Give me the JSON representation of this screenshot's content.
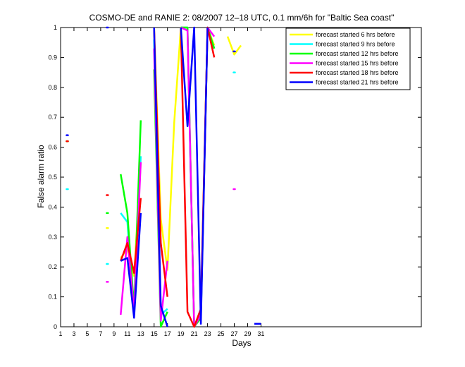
{
  "chart_data": {
    "type": "line",
    "title": "COSMO-DE and RANIE 2: 08/2007 12–18 UTC, 0.1 mm/6h for \"Baltic Sea coast\"",
    "xlabel": "Days",
    "ylabel": "False alarm ratio",
    "xlim": [
      1,
      55
    ],
    "ylim": [
      0,
      1
    ],
    "xticks": [
      1,
      3,
      5,
      7,
      9,
      11,
      13,
      15,
      17,
      19,
      21,
      23,
      25,
      27,
      29,
      31
    ],
    "yticks": [
      0,
      0.1,
      0.2,
      0.3,
      0.4,
      0.5,
      0.6,
      0.7,
      0.8,
      0.9,
      1
    ],
    "legend_position": "top-right",
    "series": [
      {
        "name": "forecast started 6 hrs before",
        "color": "#ffff00",
        "points": [
          [
            2,
            0.62
          ],
          [
            8,
            0.33
          ],
          [
            10,
            0.23
          ],
          [
            11,
            0.26
          ],
          [
            12,
            0.17
          ],
          [
            13,
            0.55
          ],
          [
            15,
            1.0
          ],
          [
            16,
            0.36
          ],
          [
            17,
            0.19
          ],
          [
            18,
            0.68
          ],
          [
            19,
            1.0
          ],
          [
            20,
            1.0
          ],
          [
            21,
            0.0
          ],
          [
            22,
            0.04
          ],
          [
            23,
            1.0
          ],
          [
            24,
            0.94
          ],
          [
            26,
            0.97
          ],
          [
            27,
            0.91
          ],
          [
            28,
            0.94
          ]
        ]
      },
      {
        "name": "forecast started 9 hrs before",
        "color": "#00ffff",
        "points": [
          [
            2,
            0.46
          ],
          [
            8,
            0.21
          ],
          [
            10,
            0.38
          ],
          [
            11,
            0.35
          ],
          [
            12,
            0.05
          ],
          [
            13,
            0.57
          ],
          [
            15,
            0.96
          ],
          [
            16,
            0.04
          ],
          [
            17,
            0.06
          ],
          [
            19,
            1.0
          ],
          [
            20,
            1.0
          ],
          [
            21,
            0.0
          ],
          [
            22,
            0.03
          ],
          [
            23,
            1.0
          ],
          [
            24,
            0.93
          ],
          [
            27,
            0.85
          ]
        ]
      },
      {
        "name": "forecast started 12 hrs before",
        "color": "#00ff00",
        "points": [
          [
            2,
            0.62
          ],
          [
            8,
            0.38
          ],
          [
            10,
            0.51
          ],
          [
            11,
            0.38
          ],
          [
            12,
            0.06
          ],
          [
            13,
            0.69
          ],
          [
            15,
            0.86
          ],
          [
            16,
            0.0
          ],
          [
            17,
            0.05
          ],
          [
            19,
            1.0
          ],
          [
            20,
            1.0
          ],
          [
            21,
            0.0
          ],
          [
            22,
            0.03
          ],
          [
            23,
            1.0
          ],
          [
            24,
            0.93
          ]
        ]
      },
      {
        "name": "forecast started 15 hrs before",
        "color": "#ff00ff",
        "points": [
          [
            8,
            0.15
          ],
          [
            10,
            0.04
          ],
          [
            11,
            0.3
          ],
          [
            12,
            0.05
          ],
          [
            13,
            0.55
          ],
          [
            15,
            0.93
          ],
          [
            16,
            0.02
          ],
          [
            17,
            0.22
          ],
          [
            19,
            1.0
          ],
          [
            20,
            0.99
          ],
          [
            21,
            0.0
          ],
          [
            22,
            0.04
          ],
          [
            23,
            1.0
          ],
          [
            24,
            0.97
          ],
          [
            27,
            0.46
          ]
        ]
      },
      {
        "name": "forecast started 18 hrs before",
        "color": "#ff0000",
        "points": [
          [
            2,
            0.62
          ],
          [
            8,
            0.44
          ],
          [
            10,
            0.22
          ],
          [
            11,
            0.28
          ],
          [
            12,
            0.18
          ],
          [
            13,
            0.43
          ],
          [
            15,
            1.0
          ],
          [
            16,
            0.28
          ],
          [
            17,
            0.1
          ],
          [
            19,
            1.0
          ],
          [
            20,
            0.05
          ],
          [
            21,
            0.0
          ],
          [
            22,
            0.06
          ],
          [
            23,
            1.0
          ],
          [
            24,
            0.9
          ]
        ]
      },
      {
        "name": "forecast started 21 hrs before",
        "color": "#0000ff",
        "points": [
          [
            2,
            0.64
          ],
          [
            8,
            1.0
          ],
          [
            10,
            0.22
          ],
          [
            11,
            0.23
          ],
          [
            12,
            0.03
          ],
          [
            13,
            0.38
          ],
          [
            15,
            1.0
          ],
          [
            16,
            0.07
          ],
          [
            17,
            0.0
          ],
          [
            19,
            1.0
          ],
          [
            20,
            0.67
          ],
          [
            21,
            1.0
          ],
          [
            22,
            0.01
          ],
          [
            23,
            1.0
          ],
          [
            27,
            0.92
          ],
          [
            30,
            0.01
          ],
          [
            31,
            0.01
          ]
        ]
      }
    ]
  }
}
